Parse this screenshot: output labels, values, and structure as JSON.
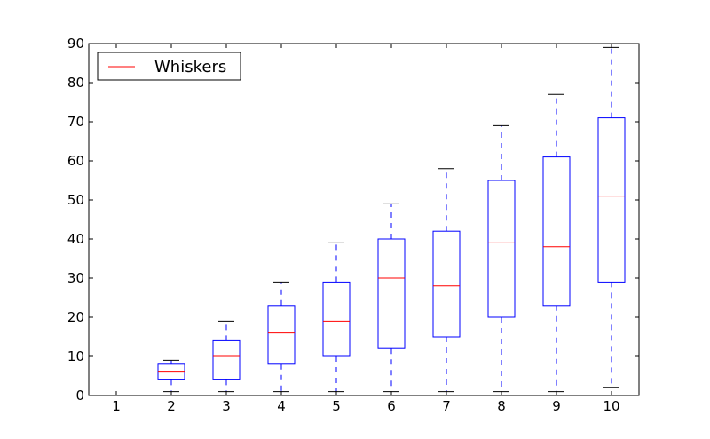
{
  "chart_data": {
    "type": "box",
    "categories": [
      "1",
      "2",
      "3",
      "4",
      "5",
      "6",
      "7",
      "8",
      "9",
      "10"
    ],
    "boxes": [
      {
        "whislo": 0,
        "q1": 0,
        "med": 0,
        "q3": 0,
        "whishi": 0
      },
      {
        "whislo": 1,
        "q1": 4,
        "med": 6,
        "q3": 8,
        "whishi": 9
      },
      {
        "whislo": 1,
        "q1": 4,
        "med": 10,
        "q3": 14,
        "whishi": 19
      },
      {
        "whislo": 1,
        "q1": 8,
        "med": 16,
        "q3": 23,
        "whishi": 29
      },
      {
        "whislo": 1,
        "q1": 10,
        "med": 19,
        "q3": 29,
        "whishi": 39
      },
      {
        "whislo": 1,
        "q1": 12,
        "med": 30,
        "q3": 40,
        "whishi": 49
      },
      {
        "whislo": 1,
        "q1": 15,
        "med": 28,
        "q3": 42,
        "whishi": 58
      },
      {
        "whislo": 1,
        "q1": 20,
        "med": 39,
        "q3": 55,
        "whishi": 69
      },
      {
        "whislo": 1,
        "q1": 23,
        "med": 38,
        "q3": 61,
        "whishi": 77
      },
      {
        "whislo": 2,
        "q1": 29,
        "med": 51,
        "q3": 71,
        "whishi": 89
      }
    ],
    "ylim": [
      0,
      90
    ],
    "yticks": [
      0,
      10,
      20,
      30,
      40,
      50,
      60,
      70,
      80,
      90
    ],
    "legend": {
      "label": "Whiskers",
      "position": "top-left"
    },
    "colors": {
      "box": "#0000ff",
      "median": "#ff0000",
      "whisker_cap": "#000000",
      "axes": "#000000"
    }
  }
}
